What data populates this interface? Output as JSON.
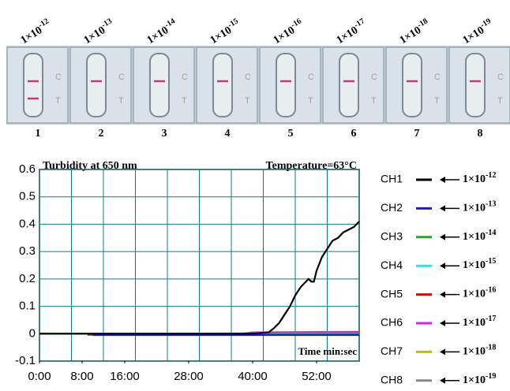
{
  "strips": [
    {
      "label": {
        "base": "1×10",
        "exp": "-12"
      },
      "number": "1"
    },
    {
      "label": {
        "base": "1×10",
        "exp": "-13"
      },
      "number": "2"
    },
    {
      "label": {
        "base": "1×10",
        "exp": "-14"
      },
      "number": "3"
    },
    {
      "label": {
        "base": "1×10",
        "exp": "-15"
      },
      "number": "4"
    },
    {
      "label": {
        "base": "1×10",
        "exp": "-16"
      },
      "number": "5"
    },
    {
      "label": {
        "base": "1×10",
        "exp": "-17"
      },
      "number": "6"
    },
    {
      "label": {
        "base": "1×10",
        "exp": "-18"
      },
      "number": "7"
    },
    {
      "label": {
        "base": "1×10",
        "exp": "-19"
      },
      "number": "8"
    }
  ],
  "cassette_marks": [
    "C",
    "T"
  ],
  "chart_data": {
    "type": "line",
    "title": "Turbidity at 650 nm",
    "annotation": "Temperature=63°C",
    "x_label": "Time min:sec",
    "xlim": [
      0,
      60
    ],
    "xticks": [
      {
        "value": 0,
        "label": "0:00"
      },
      {
        "value": 8,
        "label": "8:00"
      },
      {
        "value": 16,
        "label": "16:00"
      },
      {
        "value": 28,
        "label": "28:00"
      },
      {
        "value": 40,
        "label": "40:00"
      },
      {
        "value": 52,
        "label": "52:00"
      }
    ],
    "xgrid": [
      0,
      6,
      12,
      18,
      24,
      30,
      36,
      42,
      48,
      54,
      60
    ],
    "ylim": [
      -0.1,
      0.6
    ],
    "yticks": [
      -0.1,
      0,
      0.1,
      0.2,
      0.3,
      0.4,
      0.5,
      0.6
    ],
    "grid": true,
    "series": [
      {
        "name": "CH1",
        "color": "#000000",
        "label": {
          "base": "1×10",
          "exp": "-12"
        },
        "x": [
          0,
          10,
          20,
          30,
          40,
          43,
          44,
          45,
          46,
          47,
          48,
          49,
          50,
          50.5,
          51,
          51.5,
          52,
          53,
          54,
          55,
          56,
          57,
          58,
          59,
          60
        ],
        "values": [
          0,
          0,
          0,
          0,
          0,
          0.005,
          0.02,
          0.04,
          0.07,
          0.1,
          0.14,
          0.17,
          0.19,
          0.2,
          0.19,
          0.19,
          0.23,
          0.28,
          0.31,
          0.34,
          0.35,
          0.37,
          0.38,
          0.39,
          0.41
        ]
      },
      {
        "name": "CH2",
        "color": "#1a1acc",
        "label": {
          "base": "1×10",
          "exp": "-13"
        },
        "x": [
          10,
          60
        ],
        "values": [
          -0.005,
          -0.005
        ]
      },
      {
        "name": "CH3",
        "color": "#22aa22",
        "label": {
          "base": "1×10",
          "exp": "-14"
        },
        "x": [
          0,
          60
        ],
        "values": [
          0,
          0
        ]
      },
      {
        "name": "CH4",
        "color": "#33e0e8",
        "label": {
          "base": "1×10",
          "exp": "-15"
        },
        "x": [
          0,
          60
        ],
        "values": [
          0,
          0
        ]
      },
      {
        "name": "CH5",
        "color": "#bb1111",
        "label": {
          "base": "1×10",
          "exp": "-16"
        },
        "x": [
          9,
          60
        ],
        "values": [
          -0.004,
          -0.004
        ]
      },
      {
        "name": "CH6",
        "color": "#e020e0",
        "label": {
          "base": "1×10",
          "exp": "-17"
        },
        "x": [
          0,
          38,
          40,
          60
        ],
        "values": [
          0,
          0,
          0.005,
          0.007
        ]
      },
      {
        "name": "CH7",
        "color": "#bbbb11",
        "label": {
          "base": "1×10",
          "exp": "-18"
        },
        "x": [
          0,
          60
        ],
        "values": [
          0,
          0.002
        ]
      },
      {
        "name": "CH8",
        "color": "#888888",
        "label": {
          "base": "1×10",
          "exp": "-19"
        },
        "x": [
          0,
          60
        ],
        "values": [
          0,
          0
        ]
      }
    ]
  }
}
